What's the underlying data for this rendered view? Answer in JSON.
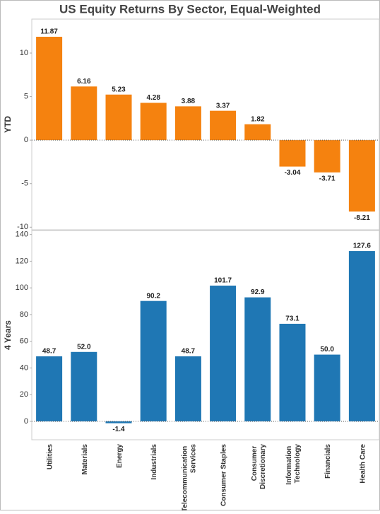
{
  "title": "US Equity Returns By Sector, Equal-Weighted",
  "chart_data": [
    {
      "type": "bar",
      "ylabel": "YTD",
      "color": "#f5820f",
      "values": [
        11.87,
        6.16,
        5.23,
        4.28,
        3.88,
        3.37,
        1.82,
        -3.04,
        -3.71,
        -8.21
      ],
      "ylim": [
        -10.3,
        13.9
      ],
      "yticks": [
        -10,
        -5,
        0,
        5,
        10
      ]
    },
    {
      "type": "bar",
      "ylabel": "4 Years",
      "color": "#1f77b4",
      "categories": [
        "Utilities",
        "Materials",
        "Energy",
        "Industrials",
        "Telecommunication Services",
        "Consumer Staples",
        "Consumer Discretionary",
        "Information Technology",
        "Financials",
        "Health Care"
      ],
      "values": [
        48.7,
        52.0,
        -1.4,
        90.2,
        48.7,
        101.7,
        92.9,
        73.1,
        50.0,
        127.6
      ],
      "value_labels": [
        "48.7",
        "52.0",
        "-1.4",
        "90.2",
        "48.7",
        "101.7",
        "92.9",
        "73.1",
        "50.0",
        "127.6"
      ],
      "ylim": [
        -13.8,
        143
      ],
      "yticks": [
        0,
        20,
        40,
        60,
        80,
        100,
        120,
        140
      ]
    }
  ]
}
